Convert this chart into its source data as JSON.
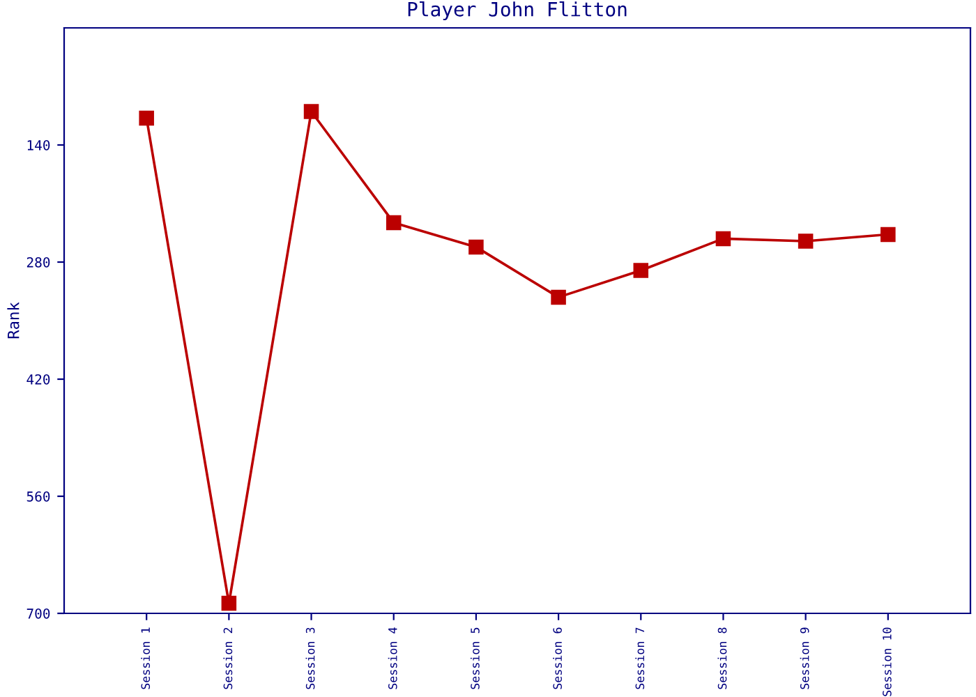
{
  "chart_data": {
    "type": "line",
    "title": "Player John Flitton",
    "ylabel": "Rank",
    "categories": [
      "Session 1",
      "Session 2",
      "Session 3",
      "Session 4",
      "Session 5",
      "Session 6",
      "Session 7",
      "Session 8",
      "Session 9",
      "Session 10"
    ],
    "series": [
      {
        "color": "#bb0000",
        "values": [
          108,
          688,
          100,
          233,
          262,
          322,
          290,
          252,
          255,
          247
        ]
      }
    ],
    "ylim": [
      700,
      0
    ],
    "yticks": [
      140,
      280,
      420,
      560,
      700
    ],
    "marker": "square",
    "line_style": "solid",
    "grid": false,
    "legend": false
  }
}
